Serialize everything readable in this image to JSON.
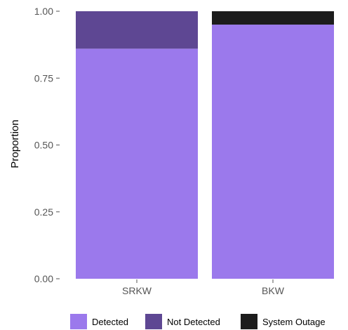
{
  "chart_data": {
    "type": "bar",
    "stacked": true,
    "categories": [
      "SRKW",
      "BKW"
    ],
    "series": [
      {
        "name": "Detected",
        "values": [
          0.86,
          0.95
        ],
        "color": "#9b79ec"
      },
      {
        "name": "Not Detected",
        "values": [
          0.14,
          0.0
        ],
        "color": "#5e4793"
      },
      {
        "name": "System Outage",
        "values": [
          0.0,
          0.05
        ],
        "color": "#1c1c1c"
      }
    ],
    "title": "",
    "xlabel": "",
    "ylabel": "Proportion",
    "ylim": [
      0,
      1
    ],
    "yticks": [
      "0.00",
      "0.25",
      "0.50",
      "0.75",
      "1.00"
    ],
    "grid": false,
    "legend_position": "bottom"
  }
}
